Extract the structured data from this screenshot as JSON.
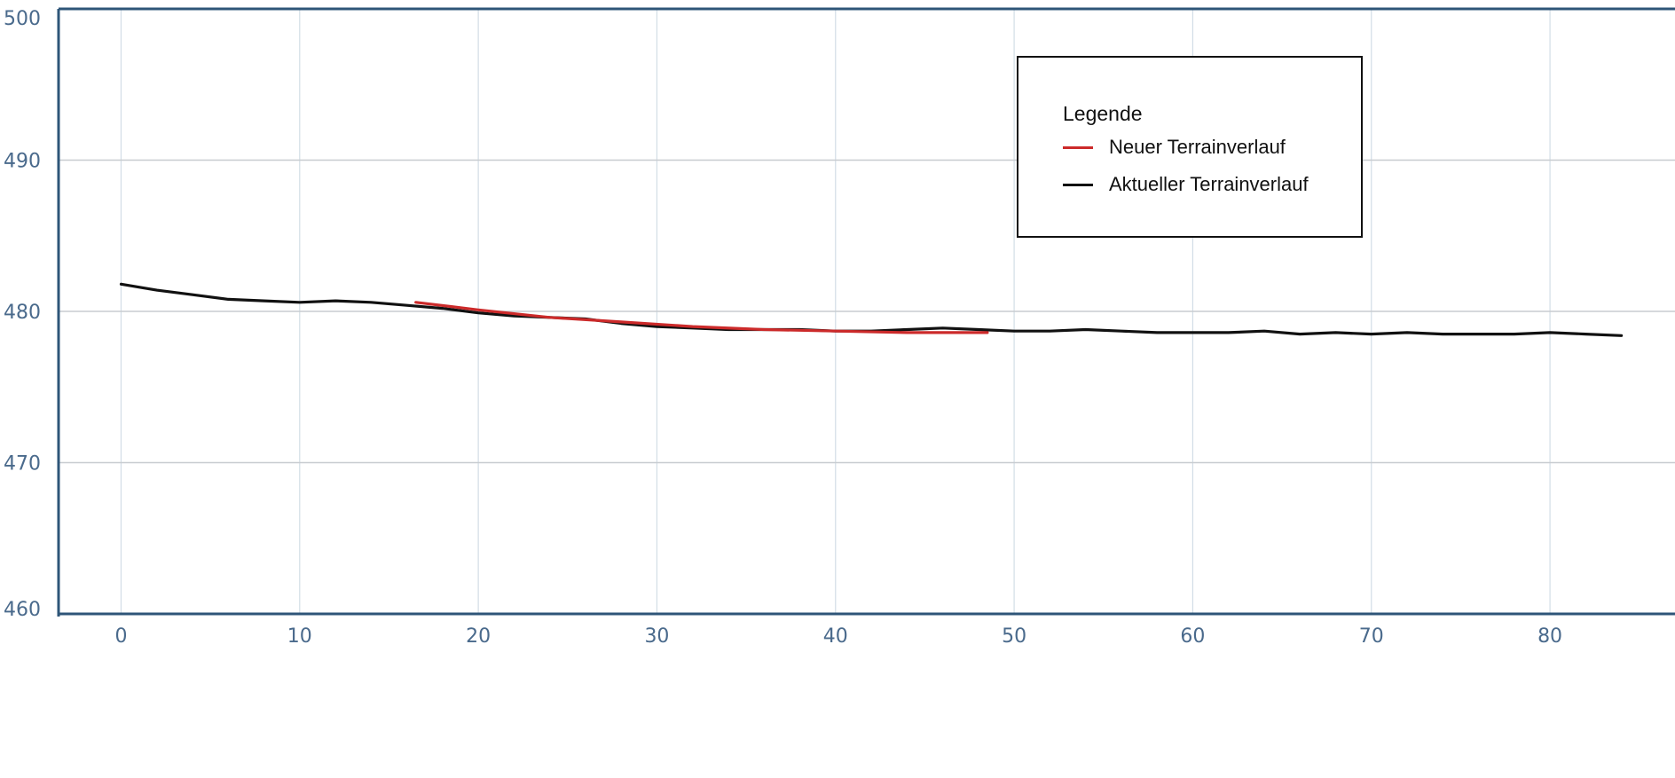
{
  "chart_data": {
    "type": "line",
    "title": "",
    "xlabel": "",
    "ylabel": "",
    "xlim": [
      -3.5,
      87
    ],
    "ylim": [
      460,
      500
    ],
    "x_ticks": [
      0,
      10,
      20,
      30,
      40,
      50,
      60,
      70,
      80
    ],
    "x_tick_labels": [
      "0",
      "10",
      "20",
      "30",
      "40",
      "50",
      "60",
      "70",
      "80"
    ],
    "y_ticks": [
      460,
      470,
      480,
      490,
      500
    ],
    "y_tick_labels": [
      "460",
      "470",
      "480",
      "490",
      "500"
    ],
    "grid": true,
    "legend_position": "top-right",
    "legend_title": "Legende",
    "series": [
      {
        "name": "Neuer Terrainverlauf",
        "color": "#cc2a2a",
        "x": [
          16.5,
          20,
          24,
          28,
          32,
          36,
          40,
          44,
          48.5
        ],
        "y": [
          480.6,
          480.1,
          479.6,
          479.3,
          479.0,
          478.8,
          478.7,
          478.6,
          478.6
        ]
      },
      {
        "name": "Aktueller Terrainverlauf",
        "color": "#111111",
        "x": [
          0,
          2,
          4,
          6,
          8,
          10,
          12,
          14,
          16,
          18,
          20,
          22,
          24,
          26,
          28,
          30,
          32,
          34,
          36,
          38,
          40,
          42,
          44,
          46,
          48,
          50,
          52,
          54,
          56,
          58,
          60,
          62,
          64,
          66,
          68,
          70,
          72,
          74,
          76,
          78,
          80,
          82,
          84
        ],
        "y": [
          481.8,
          481.4,
          481.1,
          480.8,
          480.7,
          480.6,
          480.7,
          480.6,
          480.4,
          480.2,
          479.9,
          479.7,
          479.6,
          479.5,
          479.2,
          479.0,
          478.9,
          478.8,
          478.8,
          478.8,
          478.7,
          478.7,
          478.8,
          478.9,
          478.8,
          478.7,
          478.7,
          478.8,
          478.7,
          478.6,
          478.6,
          478.6,
          478.7,
          478.5,
          478.6,
          478.5,
          478.6,
          478.5,
          478.5,
          478.5,
          478.6,
          478.5,
          478.4
        ]
      }
    ]
  }
}
